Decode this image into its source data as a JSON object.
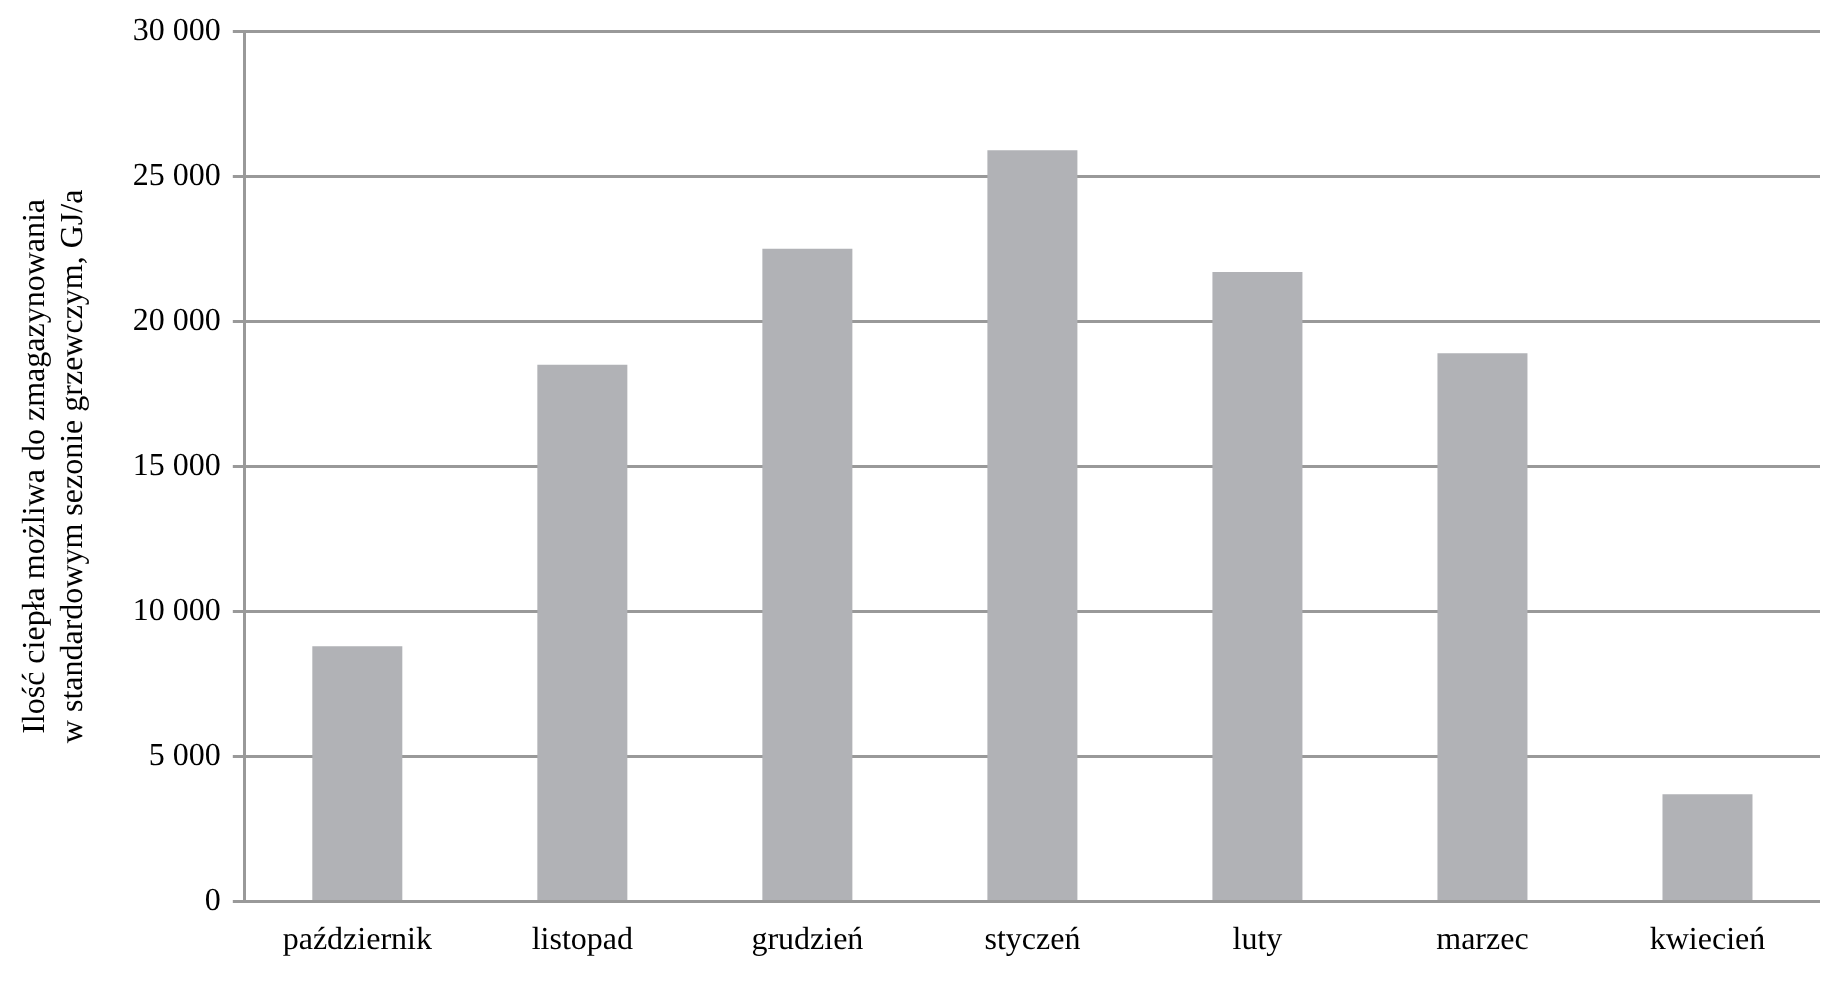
{
  "chart_data": {
    "type": "bar",
    "ylabel": "Ilość ciepła możliwa do zmagazynowania\nw standardowym sezonie grzewczym, GJ/a",
    "categories": [
      "październik",
      "listopad",
      "grudzień",
      "styczeń",
      "luty",
      "marzec",
      "kwiecień"
    ],
    "values": [
      8800,
      18500,
      22500,
      25900,
      21700,
      18900,
      3700
    ],
    "color": "#b1b2b6",
    "ylim": [
      0,
      30000
    ],
    "yticks": [
      {
        "value": 0,
        "label": "0"
      },
      {
        "value": 5000,
        "label": "5 000"
      },
      {
        "value": 10000,
        "label": "10 000"
      },
      {
        "value": 15000,
        "label": "15 000"
      },
      {
        "value": 20000,
        "label": "20 000"
      },
      {
        "value": 25000,
        "label": "25 000"
      },
      {
        "value": 30000,
        "label": "30 000"
      }
    ],
    "grid": "y",
    "legend": false
  }
}
